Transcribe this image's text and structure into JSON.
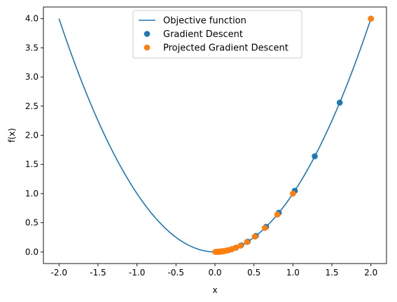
{
  "chart_data": {
    "type": "scatter",
    "title": "",
    "xlabel": "x",
    "ylabel": "f(x)",
    "xlim": [
      -2.2,
      2.2
    ],
    "ylim": [
      -0.2,
      4.2
    ],
    "xticks": [
      "-2.0",
      "-1.5",
      "-1.0",
      "-0.5",
      "0.0",
      "0.5",
      "1.0",
      "1.5",
      "2.0"
    ],
    "yticks": [
      "0.0",
      "0.5",
      "1.0",
      "1.5",
      "2.0",
      "2.5",
      "3.0",
      "3.5",
      "4.0"
    ],
    "grid": false,
    "legend_position": "top-center",
    "line_series": {
      "name": "Objective function",
      "color": "#1f77b4",
      "function": "x^2",
      "x_range": [
        -2.0,
        2.0
      ]
    },
    "series": [
      {
        "name": "Gradient Descent",
        "color": "#1f77b4",
        "points": [
          {
            "x": 2.0,
            "y": 4.0
          },
          {
            "x": 1.6,
            "y": 2.56
          },
          {
            "x": 1.28,
            "y": 1.64
          },
          {
            "x": 1.024,
            "y": 1.049
          },
          {
            "x": 0.819,
            "y": 0.671
          },
          {
            "x": 0.655,
            "y": 0.429
          },
          {
            "x": 0.524,
            "y": 0.275
          },
          {
            "x": 0.419,
            "y": 0.176
          },
          {
            "x": 0.336,
            "y": 0.113
          },
          {
            "x": 0.268,
            "y": 0.072
          },
          {
            "x": 0.215,
            "y": 0.046
          },
          {
            "x": 0.172,
            "y": 0.029
          },
          {
            "x": 0.137,
            "y": 0.019
          },
          {
            "x": 0.11,
            "y": 0.012
          },
          {
            "x": 0.088,
            "y": 0.008
          },
          {
            "x": 0.07,
            "y": 0.005
          },
          {
            "x": 0.056,
            "y": 0.003
          },
          {
            "x": 0.045,
            "y": 0.002
          },
          {
            "x": 0.036,
            "y": 0.001
          },
          {
            "x": 0.029,
            "y": 0.001
          },
          {
            "x": 0.023,
            "y": 0.001
          }
        ]
      },
      {
        "name": "Projected Gradient Descent",
        "color": "#ff7f0e",
        "points": [
          {
            "x": 2.0,
            "y": 4.0
          },
          {
            "x": 1.0,
            "y": 1.0
          },
          {
            "x": 0.8,
            "y": 0.64
          },
          {
            "x": 0.64,
            "y": 0.41
          },
          {
            "x": 0.512,
            "y": 0.262
          },
          {
            "x": 0.41,
            "y": 0.168
          },
          {
            "x": 0.328,
            "y": 0.107
          },
          {
            "x": 0.262,
            "y": 0.069
          },
          {
            "x": 0.21,
            "y": 0.044
          },
          {
            "x": 0.168,
            "y": 0.028
          },
          {
            "x": 0.134,
            "y": 0.018
          },
          {
            "x": 0.107,
            "y": 0.012
          },
          {
            "x": 0.086,
            "y": 0.007
          },
          {
            "x": 0.069,
            "y": 0.005
          },
          {
            "x": 0.055,
            "y": 0.003
          },
          {
            "x": 0.044,
            "y": 0.002
          },
          {
            "x": 0.035,
            "y": 0.001
          },
          {
            "x": 0.028,
            "y": 0.001
          },
          {
            "x": 0.023,
            "y": 0.001
          },
          {
            "x": 0.018,
            "y": 0.0
          },
          {
            "x": 0.014,
            "y": 0.0
          },
          {
            "x": 0.01,
            "y": 0.0
          },
          {
            "x": 0.005,
            "y": 0.0
          }
        ]
      }
    ]
  }
}
